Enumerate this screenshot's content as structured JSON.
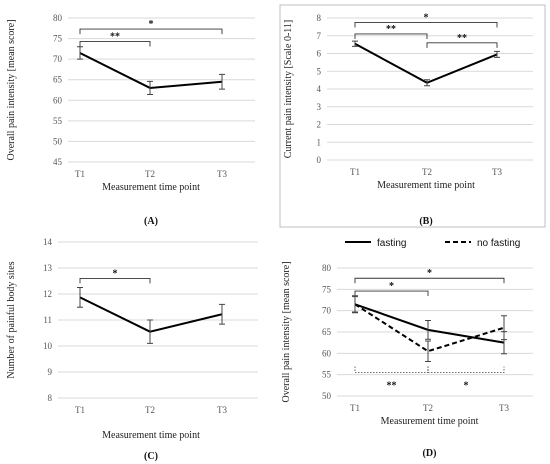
{
  "chart_data": [
    {
      "id": "A",
      "type": "line",
      "panel_label": "(A)",
      "categories": [
        "T1",
        "T2",
        "T3"
      ],
      "series": [
        {
          "values": [
            71.5,
            63.0,
            64.5
          ],
          "error": [
            1.5,
            1.6,
            1.8
          ],
          "style": "solid"
        }
      ],
      "xlabel": "Measurement time point",
      "ylabel": "Overall pain intensity [mean score]",
      "ylim": [
        45,
        80
      ],
      "yticks": [
        45,
        50,
        55,
        60,
        65,
        70,
        75,
        80
      ],
      "grid": true,
      "bordered": false,
      "brackets": [
        {
          "from": 0,
          "to": 1,
          "y": 74.3,
          "label": "**"
        },
        {
          "from": 0,
          "to": 2,
          "y": 77.3,
          "label": "*"
        }
      ]
    },
    {
      "id": "B",
      "type": "line",
      "panel_label": "(B)",
      "categories": [
        "T1",
        "T2",
        "T3"
      ],
      "series": [
        {
          "values": [
            6.55,
            4.35,
            5.95
          ],
          "error": [
            0.15,
            0.17,
            0.17
          ],
          "style": "solid"
        }
      ],
      "xlabel": "Measurement time point",
      "ylabel": "Current pain intensity [Scale 0-11]",
      "ylim": [
        0,
        8
      ],
      "yticks": [
        0,
        1,
        2,
        3,
        4,
        5,
        6,
        7,
        8
      ],
      "grid": true,
      "bordered": true,
      "brackets": [
        {
          "from": 0,
          "to": 1,
          "y": 7.1,
          "label": "**"
        },
        {
          "from": 0,
          "to": 2,
          "y": 7.75,
          "label": "*"
        },
        {
          "from": 1,
          "to": 2,
          "y": 6.6,
          "label": "**"
        }
      ]
    },
    {
      "id": "C",
      "type": "line",
      "panel_label": "(C)",
      "categories": [
        "T1",
        "T2",
        "T3"
      ],
      "series": [
        {
          "values": [
            11.87,
            10.55,
            11.22
          ],
          "error": [
            0.38,
            0.45,
            0.38
          ],
          "style": "solid"
        }
      ],
      "xlabel": "Measurement time point",
      "ylabel": "Number of painful body sites",
      "ylim": [
        8,
        14
      ],
      "yticks": [
        8,
        9,
        10,
        11,
        12,
        13,
        14
      ],
      "grid": true,
      "bordered": false,
      "brackets": [
        {
          "from": 0,
          "to": 1,
          "y": 12.6,
          "label": "*"
        }
      ]
    },
    {
      "id": "D",
      "type": "line",
      "panel_label": "(D)",
      "categories": [
        "T1",
        "T2",
        "T3"
      ],
      "legend": "top",
      "series": [
        {
          "name": "fasting",
          "values": [
            71.5,
            65.5,
            62.5
          ],
          "error": [
            1.8,
            2.2,
            2.6
          ],
          "style": "solid"
        },
        {
          "name": "no fasting",
          "values": [
            71.5,
            60.5,
            66.0
          ],
          "error": [
            2.0,
            2.4,
            2.8
          ],
          "style": "dashed"
        }
      ],
      "xlabel": "Measurement time point",
      "ylabel": "Overall pain intensity [mean score]",
      "ylim": [
        50,
        80
      ],
      "yticks": [
        50,
        55,
        60,
        65,
        70,
        75,
        80
      ],
      "grid": true,
      "bordered": false,
      "brackets": [
        {
          "from": 0,
          "to": 1,
          "y": 74.6,
          "label": "*"
        },
        {
          "from": 0,
          "to": 2,
          "y": 77.6,
          "label": "*"
        }
      ],
      "lower_brackets": [
        {
          "from": 0,
          "to": 1,
          "y": 55.5,
          "label": "**"
        },
        {
          "from": 1,
          "to": 2,
          "y": 55.5,
          "label": "*"
        }
      ]
    }
  ]
}
